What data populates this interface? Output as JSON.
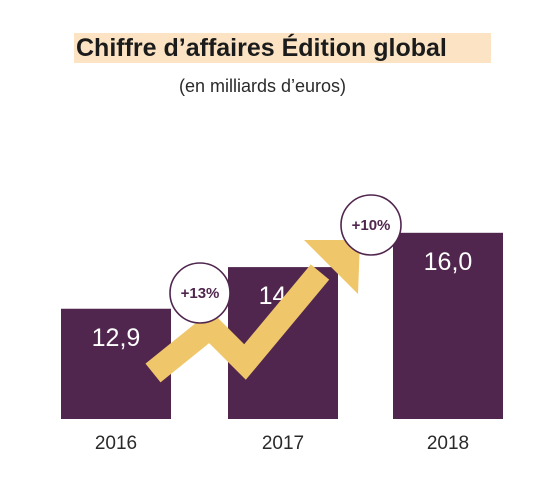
{
  "chart_data": {
    "type": "bar",
    "title": "Chiffre d’affaires Édition global",
    "subtitle": "(en milliards d’euros)",
    "categories": [
      "2016",
      "2017",
      "2018"
    ],
    "values": [
      12.9,
      14.6,
      16.0
    ],
    "value_labels": [
      "12,9",
      "14,6",
      "16,0"
    ],
    "growth_annotations": [
      "+13%",
      "+10%"
    ],
    "colors": {
      "bar": "#50264e",
      "arrow": "#f0c66b",
      "title_highlight": "#fbe3c4",
      "badge_text": "#50264e"
    }
  }
}
